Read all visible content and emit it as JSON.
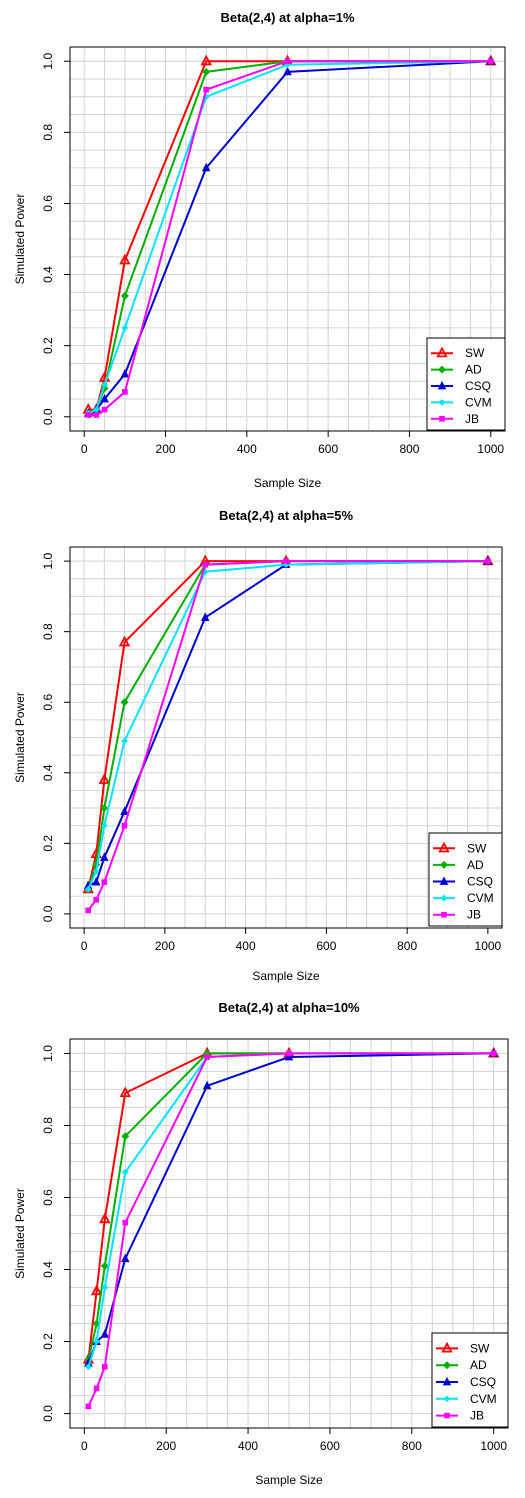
{
  "chart_data": [
    {
      "type": "line",
      "title": "Beta(2,4) at alpha=1%",
      "xlabel": "Sample Size",
      "ylabel": "Simulated Power",
      "xlim": [
        0,
        1000
      ],
      "ylim": [
        0,
        1
      ],
      "grid": true,
      "legend_position": "bottom-right",
      "x_ticks": [
        "0",
        "200",
        "400",
        "600",
        "800",
        "1000"
      ],
      "y_ticks": [
        "0.0",
        "0.2",
        "0.4",
        "0.6",
        "0.8",
        "1.0"
      ],
      "x": [
        10,
        30,
        50,
        100,
        300,
        500,
        1000
      ],
      "series": [
        {
          "name": "SW",
          "color": "#ff0000",
          "marker": "triangle-open",
          "values": [
            0.02,
            0.02,
            0.11,
            0.44,
            1.0,
            1.0,
            1.0
          ]
        },
        {
          "name": "AD",
          "color": "#00b000",
          "marker": "diamond",
          "values": [
            0.01,
            0.02,
            0.08,
            0.34,
            0.97,
            1.0,
            1.0
          ]
        },
        {
          "name": "CSQ",
          "color": "#0000d0",
          "marker": "triangle",
          "values": [
            0.01,
            0.02,
            0.05,
            0.12,
            0.7,
            0.97,
            1.0
          ]
        },
        {
          "name": "CVM",
          "color": "#00e5ff",
          "marker": "diamond-small",
          "values": [
            0.01,
            0.02,
            0.09,
            0.25,
            0.9,
            0.99,
            1.0
          ]
        },
        {
          "name": "JB",
          "color": "#ff00ff",
          "marker": "square",
          "values": [
            0.005,
            0.005,
            0.02,
            0.07,
            0.92,
            1.0,
            1.0
          ]
        }
      ]
    },
    {
      "type": "line",
      "title": "Beta(2,4) at alpha=5%",
      "xlabel": "Sample Size",
      "ylabel": "Simulated Power",
      "xlim": [
        0,
        1000
      ],
      "ylim": [
        0,
        1
      ],
      "grid": true,
      "legend_position": "bottom-right",
      "x_ticks": [
        "0",
        "200",
        "400",
        "600",
        "800",
        "1000"
      ],
      "y_ticks": [
        "0.0",
        "0.2",
        "0.4",
        "0.6",
        "0.8",
        "1.0"
      ],
      "x": [
        10,
        30,
        50,
        100,
        300,
        500,
        1000
      ],
      "series": [
        {
          "name": "SW",
          "color": "#ff0000",
          "marker": "triangle-open",
          "values": [
            0.07,
            0.17,
            0.38,
            0.77,
            1.0,
            1.0,
            1.0
          ]
        },
        {
          "name": "AD",
          "color": "#00b000",
          "marker": "diamond",
          "values": [
            0.07,
            0.14,
            0.3,
            0.6,
            0.99,
            1.0,
            1.0
          ]
        },
        {
          "name": "CSQ",
          "color": "#0000d0",
          "marker": "triangle",
          "values": [
            0.08,
            0.09,
            0.16,
            0.29,
            0.84,
            0.99,
            1.0
          ]
        },
        {
          "name": "CVM",
          "color": "#00e5ff",
          "marker": "diamond-small",
          "values": [
            0.07,
            0.12,
            0.25,
            0.49,
            0.97,
            0.99,
            1.0
          ]
        },
        {
          "name": "JB",
          "color": "#ff00ff",
          "marker": "square",
          "values": [
            0.01,
            0.04,
            0.09,
            0.25,
            0.99,
            1.0,
            1.0
          ]
        }
      ]
    },
    {
      "type": "line",
      "title": "Beta(2,4) at alpha=10%",
      "xlabel": "Sample Size",
      "ylabel": "Simulated Power",
      "xlim": [
        0,
        1000
      ],
      "ylim": [
        0,
        1
      ],
      "grid": true,
      "legend_position": "bottom-right",
      "x_ticks": [
        "0",
        "200",
        "400",
        "600",
        "800",
        "1000"
      ],
      "y_ticks": [
        "0.0",
        "0.2",
        "0.4",
        "0.6",
        "0.8",
        "1.0"
      ],
      "x": [
        10,
        30,
        50,
        100,
        300,
        500,
        1000
      ],
      "series": [
        {
          "name": "SW",
          "color": "#ff0000",
          "marker": "triangle-open",
          "values": [
            0.15,
            0.34,
            0.54,
            0.89,
            1.0,
            1.0,
            1.0
          ]
        },
        {
          "name": "AD",
          "color": "#00b000",
          "marker": "diamond",
          "values": [
            0.15,
            0.25,
            0.41,
            0.77,
            1.0,
            1.0,
            1.0
          ]
        },
        {
          "name": "CSQ",
          "color": "#0000d0",
          "marker": "triangle",
          "values": [
            0.14,
            0.2,
            0.22,
            0.43,
            0.91,
            0.99,
            1.0
          ]
        },
        {
          "name": "CVM",
          "color": "#00e5ff",
          "marker": "diamond-small",
          "values": [
            0.13,
            0.2,
            0.35,
            0.67,
            0.99,
            1.0,
            1.0
          ]
        },
        {
          "name": "JB",
          "color": "#ff00ff",
          "marker": "square",
          "values": [
            0.02,
            0.07,
            0.13,
            0.53,
            0.99,
            1.0,
            1.0
          ]
        }
      ]
    }
  ]
}
